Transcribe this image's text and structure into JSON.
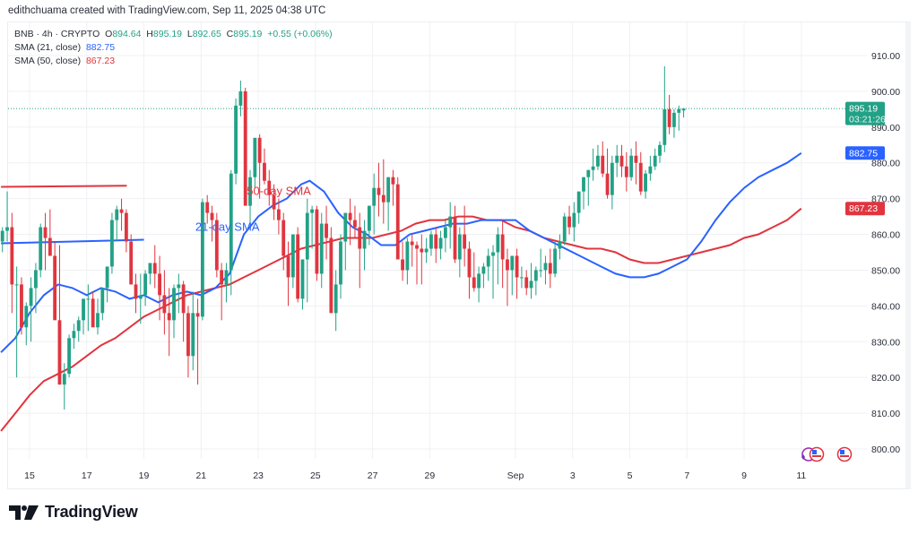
{
  "credit": "edithchuama created with TradingView.com, Sep 11, 2025 04:38 UTC",
  "legend": {
    "symbol": "BNB · 4h · CRYPTO",
    "open_label": "O",
    "open": "894.64",
    "high_label": "H",
    "high": "895.19",
    "low_label": "L",
    "low": "892.65",
    "close_label": "C",
    "close": "895.19",
    "change": "+0.55 (+0.06%)",
    "sma21_label": "SMA (21, close)",
    "sma21_value": "882.75",
    "sma50_label": "SMA (50, close)",
    "sma50_value": "867.23"
  },
  "brand": "TradingView",
  "colors": {
    "up": "#22a186",
    "down": "#e0353f",
    "sma21": "#2962ff",
    "sma50": "#e0353f",
    "grid": "#f0f1f4",
    "axis_text": "#2a2e39"
  },
  "chart_data": {
    "type": "candlestick",
    "title": "BNB · 4h · CRYPTO",
    "xlabel": "",
    "ylabel": "",
    "ylim": [
      798,
      912
    ],
    "yticks": [
      800,
      810,
      820,
      830,
      840,
      850,
      860,
      870,
      880,
      890,
      900,
      910
    ],
    "ytick_labels": [
      "800.00",
      "810.00",
      "820.00",
      "830.00",
      "840.00",
      "850.00",
      "860.00",
      "870.00",
      "880.00",
      "890.00",
      "900.00",
      "910.00"
    ],
    "xticks": [
      {
        "label": "15",
        "day": 15
      },
      {
        "label": "17",
        "day": 17
      },
      {
        "label": "19",
        "day": 19
      },
      {
        "label": "21",
        "day": 21
      },
      {
        "label": "23",
        "day": 23
      },
      {
        "label": "25",
        "day": 25
      },
      {
        "label": "27",
        "day": 27
      },
      {
        "label": "29",
        "day": 29
      },
      {
        "label": "Sep",
        "day": 32
      },
      {
        "label": "3",
        "day": 34
      },
      {
        "label": "5",
        "day": 36
      },
      {
        "label": "7",
        "day": 38
      },
      {
        "label": "9",
        "day": 40
      },
      {
        "label": "11",
        "day": 42
      }
    ],
    "x_day_range": [
      14.0,
      44.0
    ],
    "candle_start_day": 14.05,
    "candles_per_day": 6,
    "ohlc": [
      [
        858,
        862,
        855,
        861
      ],
      [
        861,
        872,
        858,
        862
      ],
      [
        862,
        866,
        838,
        846
      ],
      [
        846,
        851,
        820,
        846
      ],
      [
        846,
        848,
        832,
        834
      ],
      [
        834,
        841,
        829,
        840
      ],
      [
        840,
        848,
        830,
        845
      ],
      [
        845,
        852,
        838,
        850
      ],
      [
        850,
        863,
        848,
        862
      ],
      [
        862,
        866,
        850,
        859
      ],
      [
        859,
        867,
        854,
        854
      ],
      [
        854,
        858,
        840,
        836
      ],
      [
        836,
        857,
        818,
        818
      ],
      [
        818,
        824,
        811,
        821
      ],
      [
        821,
        832,
        820,
        831
      ],
      [
        831,
        835,
        828,
        833
      ],
      [
        833,
        837,
        830,
        836
      ],
      [
        836,
        842,
        832,
        842
      ],
      [
        842,
        846,
        833,
        842
      ],
      [
        842,
        844,
        836,
        834
      ],
      [
        834,
        842,
        832,
        838
      ],
      [
        838,
        845,
        836,
        845
      ],
      [
        845,
        850,
        841,
        851
      ],
      [
        851,
        866,
        849,
        864
      ],
      [
        864,
        868,
        858,
        867
      ],
      [
        867,
        870,
        861,
        866
      ],
      [
        866,
        867,
        855,
        858
      ],
      [
        858,
        860,
        846,
        846
      ],
      [
        846,
        849,
        838,
        842
      ],
      [
        842,
        849,
        835,
        843
      ],
      [
        843,
        850,
        840,
        849
      ],
      [
        849,
        852,
        846,
        852
      ],
      [
        852,
        857,
        845,
        849
      ],
      [
        849,
        854,
        836,
        843
      ],
      [
        843,
        850,
        832,
        838
      ],
      [
        838,
        845,
        826,
        836
      ],
      [
        836,
        846,
        831,
        845
      ],
      [
        845,
        849,
        838,
        846
      ],
      [
        846,
        847,
        830,
        838
      ],
      [
        838,
        840,
        820,
        826
      ],
      [
        826,
        844,
        822,
        838
      ],
      [
        838,
        842,
        818,
        837
      ],
      [
        837,
        870,
        836,
        869
      ],
      [
        869,
        871,
        863,
        866
      ],
      [
        866,
        868,
        858,
        864
      ],
      [
        864,
        866,
        848,
        850
      ],
      [
        850,
        852,
        836,
        846
      ],
      [
        846,
        852,
        841,
        850
      ],
      [
        850,
        878,
        843,
        877
      ],
      [
        877,
        898,
        874,
        896
      ],
      [
        896,
        903,
        893,
        900
      ],
      [
        900,
        901,
        871,
        868
      ],
      [
        868,
        878,
        862,
        876
      ],
      [
        876,
        884,
        873,
        887
      ],
      [
        887,
        888,
        870,
        880
      ],
      [
        880,
        884,
        874,
        875
      ],
      [
        875,
        878,
        868,
        871
      ],
      [
        871,
        874,
        864,
        867
      ],
      [
        867,
        870,
        860,
        864
      ],
      [
        864,
        866,
        850,
        854
      ],
      [
        854,
        858,
        840,
        848
      ],
      [
        848,
        857,
        845,
        860
      ],
      [
        860,
        862,
        841,
        842
      ],
      [
        842,
        850,
        839,
        853
      ],
      [
        853,
        870,
        841,
        866
      ],
      [
        866,
        868,
        856,
        867
      ],
      [
        867,
        868,
        847,
        849
      ],
      [
        849,
        866,
        845,
        863
      ],
      [
        863,
        868,
        853,
        859
      ],
      [
        859,
        862,
        840,
        838
      ],
      [
        838,
        850,
        833,
        846
      ],
      [
        846,
        860,
        842,
        858
      ],
      [
        858,
        866,
        850,
        866
      ],
      [
        866,
        870,
        857,
        864
      ],
      [
        864,
        868,
        859,
        862
      ],
      [
        862,
        866,
        845,
        856
      ],
      [
        856,
        864,
        850,
        861
      ],
      [
        861,
        868,
        857,
        868
      ],
      [
        868,
        877,
        860,
        873
      ],
      [
        873,
        880,
        865,
        871
      ],
      [
        871,
        881,
        863,
        869
      ],
      [
        869,
        876,
        861,
        876
      ],
      [
        876,
        878,
        868,
        874
      ],
      [
        874,
        876,
        855,
        853
      ],
      [
        853,
        858,
        847,
        850
      ],
      [
        850,
        859,
        846,
        858
      ],
      [
        858,
        860,
        851,
        857
      ],
      [
        857,
        858,
        846,
        856
      ],
      [
        856,
        860,
        846,
        855
      ],
      [
        855,
        859,
        852,
        856
      ],
      [
        856,
        861,
        854,
        860
      ],
      [
        860,
        862,
        852,
        856
      ],
      [
        856,
        861,
        853,
        859
      ],
      [
        859,
        864,
        855,
        862
      ],
      [
        862,
        869,
        856,
        865
      ],
      [
        865,
        868,
        852,
        853
      ],
      [
        853,
        862,
        848,
        860
      ],
      [
        860,
        868,
        851,
        856
      ],
      [
        856,
        858,
        842,
        848
      ],
      [
        848,
        855,
        844,
        845
      ],
      [
        845,
        851,
        841,
        849
      ],
      [
        849,
        852,
        845,
        851
      ],
      [
        851,
        856,
        847,
        854
      ],
      [
        854,
        857,
        842,
        855
      ],
      [
        855,
        862,
        846,
        860
      ],
      [
        860,
        864,
        845,
        853
      ],
      [
        853,
        856,
        840,
        850
      ],
      [
        850,
        854,
        843,
        854
      ],
      [
        854,
        856,
        842,
        848
      ],
      [
        848,
        851,
        845,
        848
      ],
      [
        848,
        850,
        843,
        845
      ],
      [
        845,
        852,
        842,
        847
      ],
      [
        847,
        851,
        843,
        850
      ],
      [
        850,
        856,
        848,
        850
      ],
      [
        850,
        854,
        846,
        852
      ],
      [
        852,
        856,
        845,
        849
      ],
      [
        849,
        858,
        848,
        856
      ],
      [
        856,
        860,
        853,
        858
      ],
      [
        858,
        866,
        857,
        865
      ],
      [
        865,
        868,
        860,
        862
      ],
      [
        862,
        869,
        858,
        866
      ],
      [
        866,
        872,
        863,
        872
      ],
      [
        872,
        876,
        867,
        876
      ],
      [
        876,
        878,
        868,
        878
      ],
      [
        878,
        884,
        875,
        879
      ],
      [
        879,
        885,
        878,
        882
      ],
      [
        882,
        886,
        876,
        877
      ],
      [
        877,
        884,
        870,
        871
      ],
      [
        871,
        882,
        867,
        880
      ],
      [
        880,
        885,
        876,
        882
      ],
      [
        882,
        885,
        876,
        879
      ],
      [
        879,
        883,
        872,
        876
      ],
      [
        876,
        884,
        875,
        882
      ],
      [
        882,
        886,
        874,
        880
      ],
      [
        880,
        883,
        871,
        872
      ],
      [
        872,
        878,
        870,
        877
      ],
      [
        877,
        882,
        875,
        879
      ],
      [
        879,
        884,
        878,
        882
      ],
      [
        882,
        886,
        880,
        885
      ],
      [
        885,
        907,
        883,
        895
      ],
      [
        895,
        899,
        888,
        890
      ],
      [
        890,
        895,
        887,
        894
      ],
      [
        894,
        896,
        889,
        895
      ],
      [
        894.64,
        895.19,
        892.65,
        895.19
      ]
    ],
    "sma21": [
      [
        14.0,
        827
      ],
      [
        14.5,
        831
      ],
      [
        15.0,
        838
      ],
      [
        15.5,
        843
      ],
      [
        16.0,
        846
      ],
      [
        16.5,
        845
      ],
      [
        17.0,
        843
      ],
      [
        17.5,
        845
      ],
      [
        18.0,
        844
      ],
      [
        18.5,
        842
      ],
      [
        19.0,
        843
      ],
      [
        19.5,
        841
      ],
      [
        20.0,
        843
      ],
      [
        20.5,
        844
      ],
      [
        21.0,
        843
      ],
      [
        21.5,
        845
      ],
      [
        22.0,
        849
      ],
      [
        22.5,
        860
      ],
      [
        23.0,
        865
      ],
      [
        23.5,
        868
      ],
      [
        24.0,
        870
      ],
      [
        24.5,
        874
      ],
      [
        24.8,
        875
      ],
      [
        25.3,
        872
      ],
      [
        25.8,
        866
      ],
      [
        26.3,
        862
      ],
      [
        26.8,
        860
      ],
      [
        27.3,
        857
      ],
      [
        27.8,
        857
      ],
      [
        28.3,
        860
      ],
      [
        28.8,
        861
      ],
      [
        29.3,
        862
      ],
      [
        29.8,
        863
      ],
      [
        30.3,
        863
      ],
      [
        30.8,
        864
      ],
      [
        31.3,
        864
      ],
      [
        32.0,
        864
      ],
      [
        32.5,
        861
      ],
      [
        33.0,
        859
      ],
      [
        33.5,
        857
      ],
      [
        34.0,
        855
      ],
      [
        34.5,
        853
      ],
      [
        35.0,
        851
      ],
      [
        35.5,
        849
      ],
      [
        36.0,
        848
      ],
      [
        36.5,
        848
      ],
      [
        37.0,
        849
      ],
      [
        37.5,
        851
      ],
      [
        38.0,
        853
      ],
      [
        38.5,
        858
      ],
      [
        39.0,
        864
      ],
      [
        39.5,
        869
      ],
      [
        40.0,
        873
      ],
      [
        40.5,
        876
      ],
      [
        41.0,
        878
      ],
      [
        41.5,
        880
      ],
      [
        42.0,
        882.75
      ]
    ],
    "sma50": [
      [
        14.0,
        805
      ],
      [
        14.5,
        810
      ],
      [
        15.0,
        815
      ],
      [
        15.5,
        819
      ],
      [
        16.0,
        821
      ],
      [
        16.5,
        823
      ],
      [
        17.0,
        826
      ],
      [
        17.5,
        829
      ],
      [
        18.0,
        831
      ],
      [
        18.5,
        834
      ],
      [
        19.0,
        837
      ],
      [
        19.5,
        839
      ],
      [
        20.0,
        841
      ],
      [
        20.5,
        843
      ],
      [
        21.0,
        844
      ],
      [
        21.5,
        845
      ],
      [
        22.0,
        846
      ],
      [
        22.5,
        848
      ],
      [
        23.0,
        850
      ],
      [
        23.5,
        852
      ],
      [
        24.0,
        854
      ],
      [
        24.5,
        856
      ],
      [
        25.0,
        857
      ],
      [
        25.5,
        858
      ],
      [
        26.0,
        859
      ],
      [
        26.5,
        859
      ],
      [
        27.0,
        859
      ],
      [
        27.5,
        860
      ],
      [
        28.0,
        861
      ],
      [
        28.5,
        863
      ],
      [
        29.0,
        864
      ],
      [
        29.5,
        864
      ],
      [
        30.0,
        865
      ],
      [
        30.5,
        865
      ],
      [
        31.0,
        864
      ],
      [
        31.5,
        864
      ],
      [
        32.0,
        862
      ],
      [
        32.5,
        861
      ],
      [
        33.0,
        859
      ],
      [
        33.5,
        858
      ],
      [
        34.0,
        857
      ],
      [
        34.5,
        856
      ],
      [
        35.0,
        856
      ],
      [
        35.5,
        855
      ],
      [
        36.0,
        853
      ],
      [
        36.5,
        852
      ],
      [
        37.0,
        852
      ],
      [
        37.5,
        853
      ],
      [
        38.0,
        854
      ],
      [
        38.5,
        855
      ],
      [
        39.0,
        856
      ],
      [
        39.5,
        857
      ],
      [
        40.0,
        859
      ],
      [
        40.5,
        860
      ],
      [
        41.0,
        862
      ],
      [
        41.5,
        864
      ],
      [
        42.0,
        867.23
      ]
    ],
    "annotations": [
      {
        "text": "50-day SMA",
        "day": 22.6,
        "value": 871,
        "color": "#e0353f"
      },
      {
        "text": "21-day SMA",
        "day": 20.8,
        "value": 861,
        "color": "#2962ff"
      }
    ],
    "drawn_lines": [
      {
        "name": "sma50-reference-line",
        "from": [
          14.0,
          873.3
        ],
        "to": [
          18.4,
          873.6
        ],
        "color": "#e0353f"
      },
      {
        "name": "sma21-reference-line",
        "from": [
          14.0,
          857.5
        ],
        "to": [
          19.0,
          858.5
        ],
        "color": "#2962ff"
      }
    ],
    "last_price_line": 895.19,
    "price_labels": [
      {
        "name": "last-price-label",
        "value": "895.19",
        "sub": "03:21:26",
        "at": 895.19,
        "color": "#22a186"
      },
      {
        "name": "sma21-price-label",
        "value": "882.75",
        "at": 882.75,
        "color": "#2962ff"
      },
      {
        "name": "sma50-price-label",
        "value": "867.23",
        "at": 867.23,
        "color": "#e0353f"
      }
    ]
  }
}
